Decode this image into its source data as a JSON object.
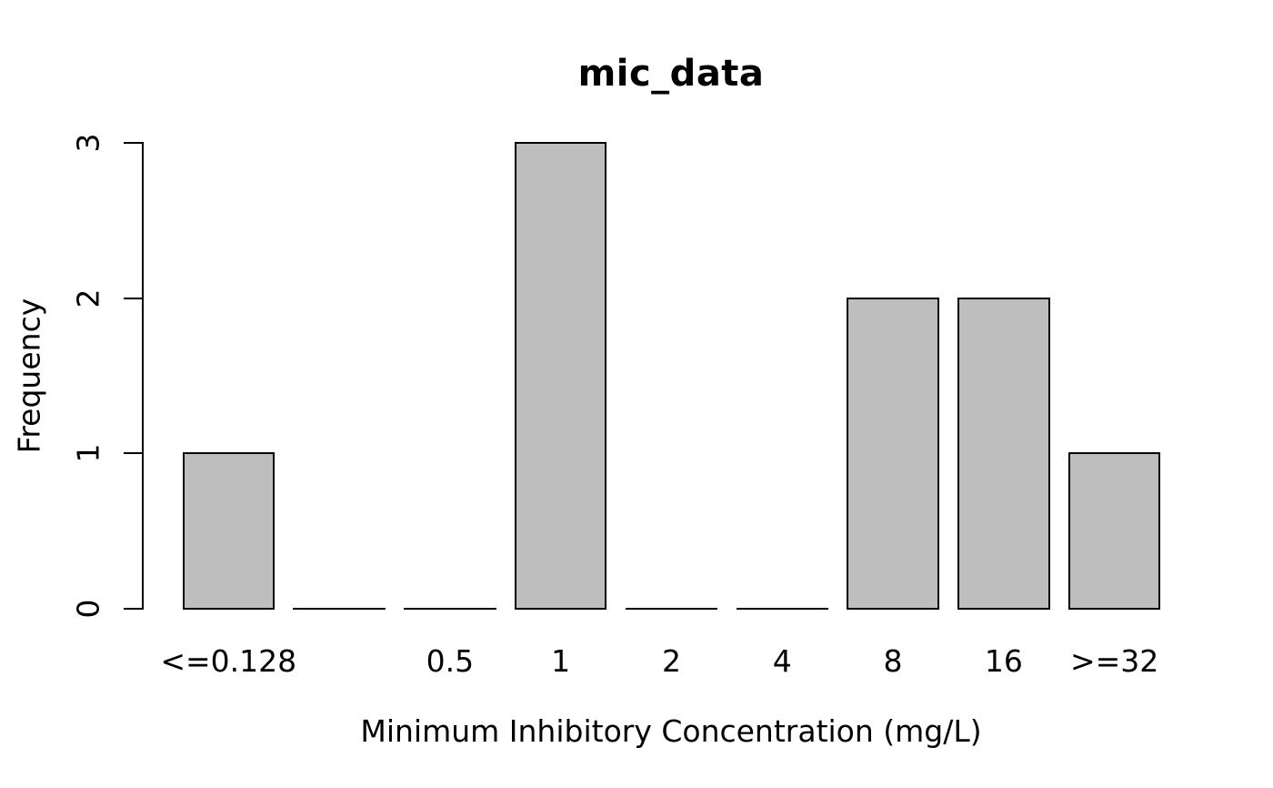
{
  "chart_data": {
    "type": "bar",
    "title": "mic_data",
    "xlabel": "Minimum Inhibitory Concentration (mg/L)",
    "ylabel": "Frequency",
    "categories": [
      "<=0.128",
      "",
      "0.5",
      "1",
      "2",
      "4",
      "8",
      "16",
      ">=32"
    ],
    "values": [
      1,
      0,
      0,
      3,
      0,
      0,
      2,
      2,
      1
    ],
    "yticks": [
      0,
      1,
      2,
      3
    ],
    "ylim": [
      0,
      3
    ],
    "grid": false,
    "legend_position": "none",
    "colors": {
      "bar_fill": "#bebebe",
      "bar_border": "#000000",
      "axis": "#000000",
      "text": "#000000",
      "background": "#ffffff"
    }
  }
}
